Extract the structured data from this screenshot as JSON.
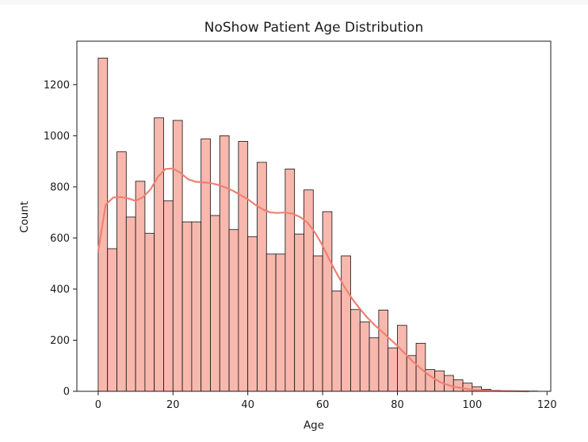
{
  "chart_data": {
    "type": "bar",
    "title": "NoShow Patient Age Distribution",
    "xlabel": "Age",
    "ylabel": "Count",
    "xlim": [
      -5.7,
      121
    ],
    "ylim": [
      0,
      1370
    ],
    "xticks": [
      0,
      20,
      40,
      60,
      80,
      100,
      120
    ],
    "yticks": [
      0,
      200,
      400,
      600,
      800,
      1000,
      1200
    ],
    "bin_width": 2.5,
    "bin_start": 0,
    "counts": [
      1304,
      558,
      937,
      682,
      822,
      618,
      1070,
      745,
      1060,
      663,
      663,
      988,
      688,
      1000,
      633,
      978,
      605,
      896,
      537,
      537,
      870,
      615,
      788,
      530,
      703,
      393,
      530,
      320,
      272,
      210,
      318,
      170,
      258,
      140,
      188,
      85,
      80,
      62,
      45,
      32,
      18,
      8,
      4,
      3,
      2,
      1,
      1
    ],
    "kde": {
      "x": [
        0,
        2,
        4,
        6,
        8,
        10,
        12,
        14,
        16,
        18,
        20,
        22,
        24,
        26,
        28,
        30,
        32,
        34,
        36,
        38,
        40,
        42,
        44,
        46,
        48,
        50,
        52,
        54,
        56,
        58,
        60,
        62,
        64,
        66,
        68,
        70,
        72,
        74,
        76,
        78,
        80,
        82,
        84,
        86,
        88,
        90,
        92,
        95,
        100,
        105,
        110,
        115
      ],
      "y": [
        548,
        730,
        758,
        760,
        755,
        745,
        760,
        790,
        840,
        870,
        872,
        855,
        830,
        820,
        818,
        815,
        808,
        798,
        785,
        768,
        752,
        730,
        712,
        700,
        698,
        700,
        695,
        682,
        660,
        620,
        570,
        510,
        455,
        405,
        360,
        322,
        288,
        258,
        232,
        205,
        178,
        148,
        118,
        92,
        68,
        48,
        32,
        18,
        6,
        2,
        1,
        0
      ]
    },
    "colors": {
      "bar_fill": "#f8b8ae",
      "bar_edge": "#111111",
      "kde_line": "#f08072"
    }
  }
}
